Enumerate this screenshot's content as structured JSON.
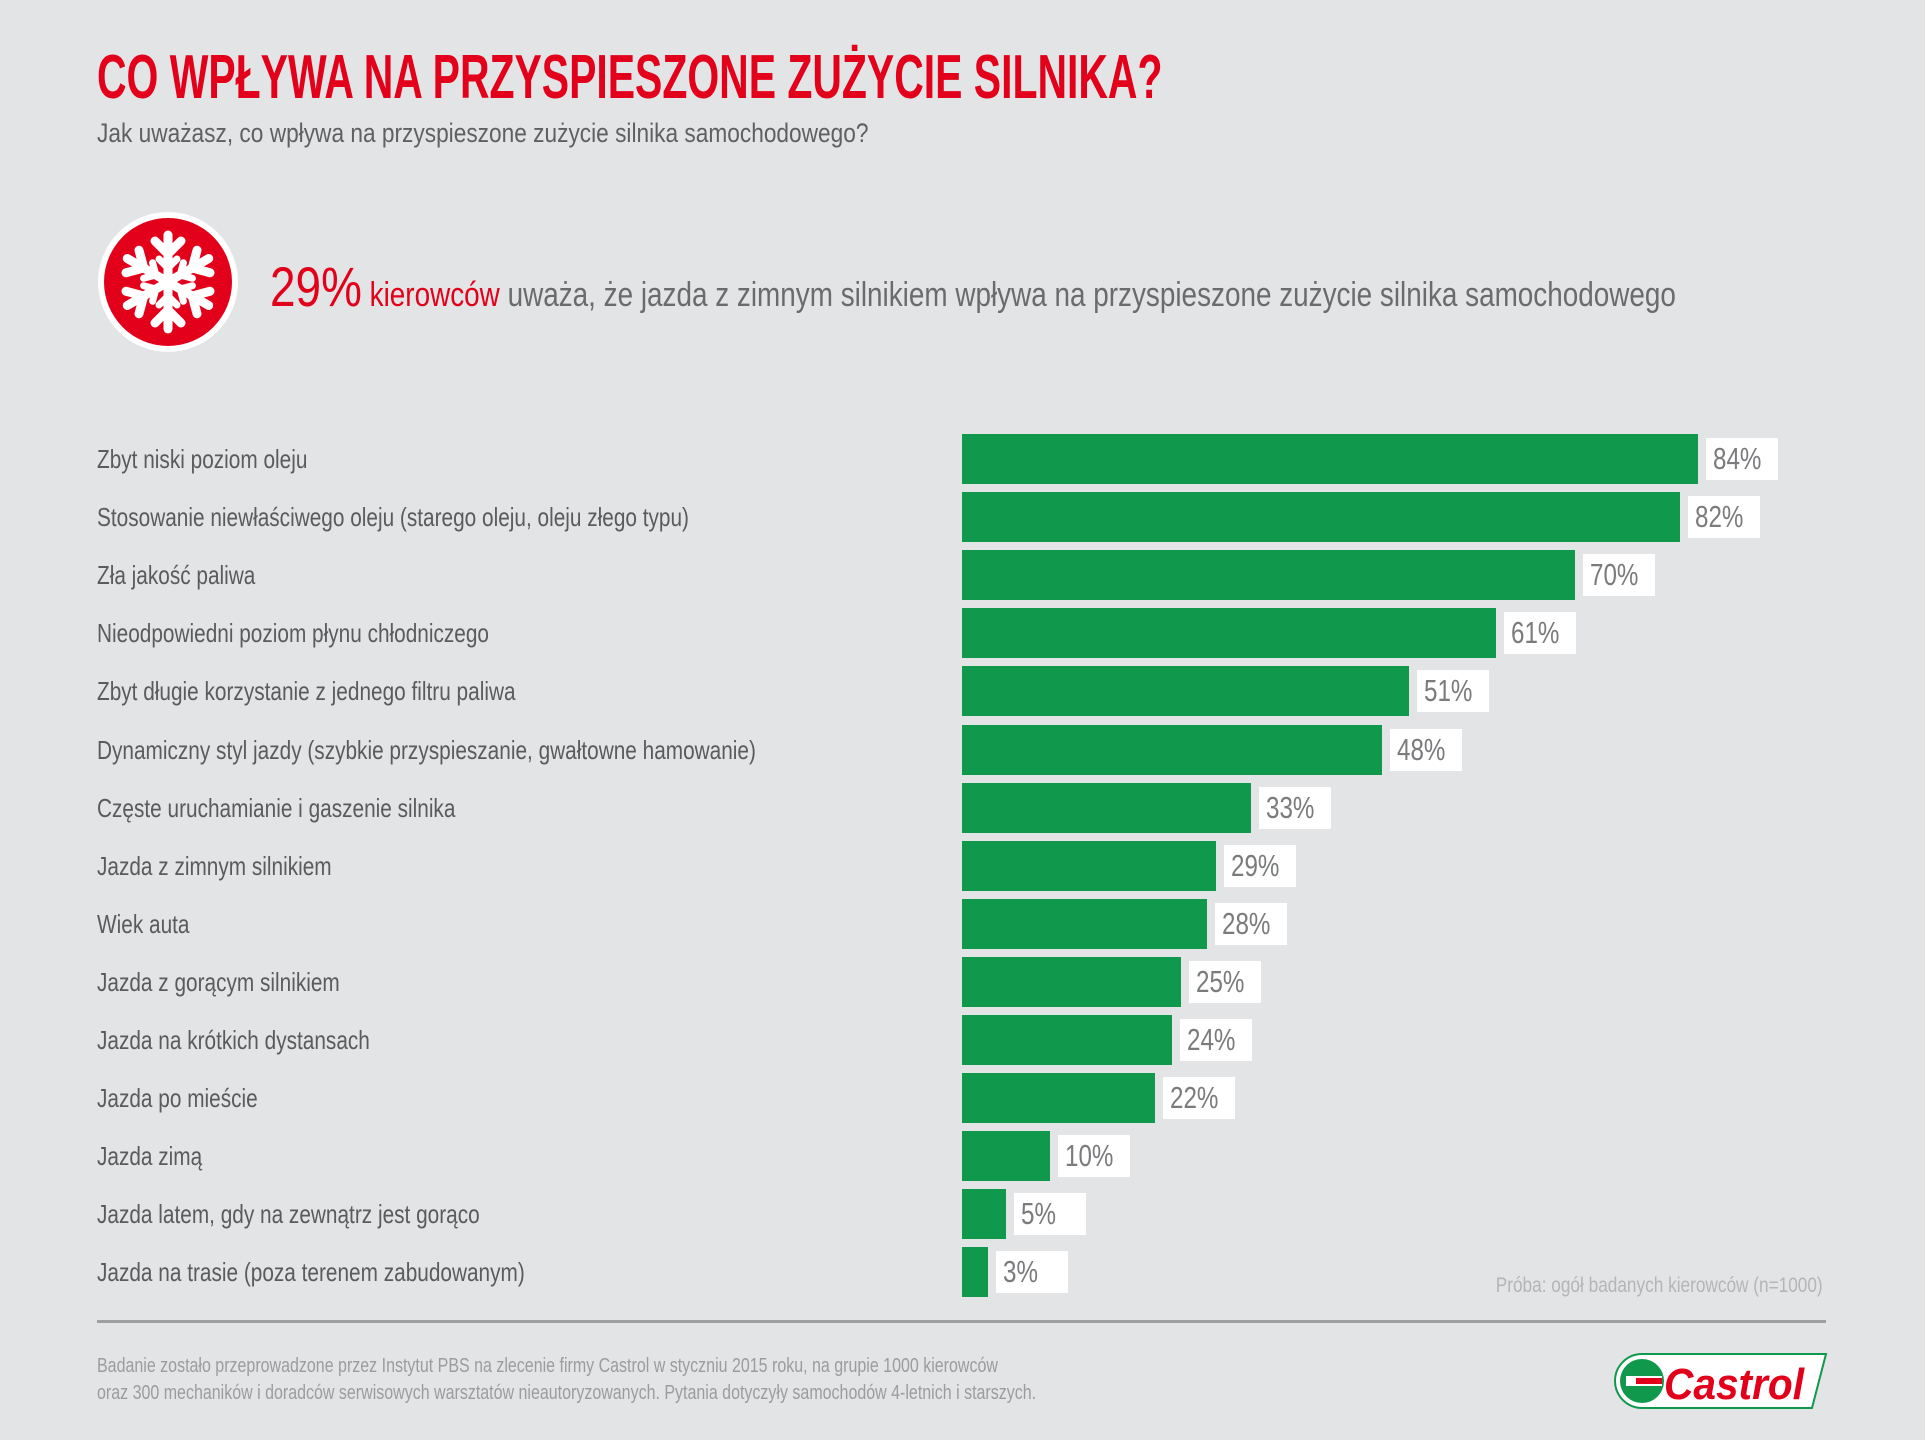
{
  "header": {
    "title": "CO WPŁYWA NA PRZYSPIESZONE ZUŻYCIE SILNIKA?",
    "subtitle": "Jak uważasz, co wpływa na przyspieszone zużycie silnika samochodowego?"
  },
  "callout": {
    "icon": "snowflake-icon",
    "percent": "29%",
    "highlight": "kierowców",
    "text": " uważa, że jazda z zimnym silnikiem wpływa na przyspieszone zużycie silnika samochodowego"
  },
  "colors": {
    "accent": "#e2001a",
    "bar": "#10984c",
    "background": "#e3e4e5"
  },
  "chart_data": {
    "type": "bar",
    "orientation": "horizontal",
    "title": "",
    "xlim": [
      0,
      100
    ],
    "grid": false,
    "categories": [
      "Zbyt niski poziom oleju",
      "Stosowanie niewłaściwego oleju (starego oleju, oleju złego typu)",
      "Zła jakość paliwa",
      "Nieodpowiedni poziom płynu chłodniczego",
      "Zbyt długie korzystanie z jednego filtru paliwa",
      "Dynamiczny styl jazdy (szybkie przyspieszanie, gwałtowne hamowanie)",
      "Częste uruchamianie i gaszenie silnika",
      "Jazda z zimnym silnikiem",
      "Wiek auta",
      "Jazda z gorącym silnikiem",
      "Jazda na krótkich dystansach",
      "Jazda po mieście",
      "Jazda zimą",
      "Jazda latem, gdy na zewnątrz jest gorąco",
      "Jazda na trasie (poza terenem zabudowanym)"
    ],
    "values": [
      84,
      82,
      70,
      61,
      51,
      48,
      33,
      29,
      28,
      25,
      24,
      22,
      10,
      5,
      3
    ],
    "labels": [
      "84%",
      "82%",
      "70%",
      "61%",
      "51%",
      "48%",
      "33%",
      "29%",
      "28%",
      "25%",
      "24%",
      "22%",
      "10%",
      "5%",
      "3%"
    ]
  },
  "sample_note": "Próba: ogół badanych kierowców (n=1000)",
  "footer": {
    "line1": "Badanie zostało przeprowadzone przez Instytut PBS na zlecenie firmy Castrol w styczniu 2015 roku, na grupie 1000 kierowców",
    "line2": "oraz 300 mechaników i doradców serwisowych warsztatów nieautoryzowanych. Pytania dotyczyły samochodów 4-letnich i starszych."
  },
  "logo": {
    "text": "Castrol"
  }
}
